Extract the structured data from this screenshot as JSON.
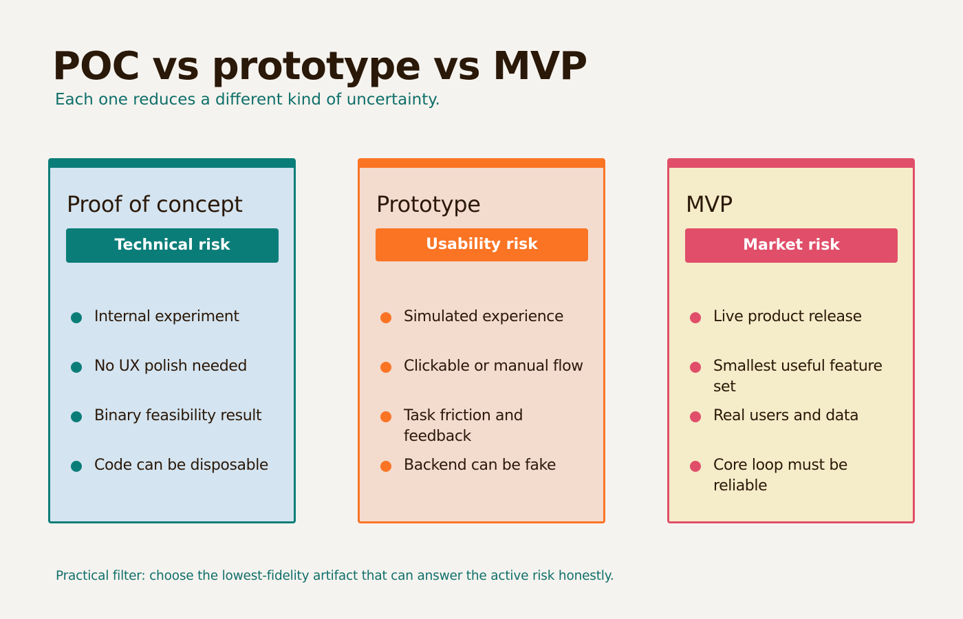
{
  "header": {
    "title": "POC vs prototype vs MVP",
    "subtitle": "Each one reduces a different kind of uncertainty."
  },
  "columns": [
    {
      "title": "Proof of concept",
      "risk": "Technical risk",
      "accent": "#0B7D78",
      "background": "#D4E4F0",
      "items": [
        "Internal experiment",
        "No UX polish needed",
        "Binary feasibility result",
        "Code can be disposable"
      ]
    },
    {
      "title": "Prototype",
      "risk": "Usability risk",
      "accent": "#FA7424",
      "background": "#F3DBCE",
      "items": [
        "Simulated experience",
        "Clickable or manual flow",
        "Task friction and feedback",
        "Backend can be fake"
      ]
    },
    {
      "title": "MVP",
      "risk": "Market risk",
      "accent": "#E04E69",
      "background": "#F5ECC9",
      "items": [
        "Live product release",
        "Smallest useful feature set",
        "Real users and data",
        "Core loop must be reliable"
      ]
    }
  ],
  "footer": {
    "note": "Practical filter: choose the lowest-fidelity artifact that can answer the active risk honestly."
  }
}
